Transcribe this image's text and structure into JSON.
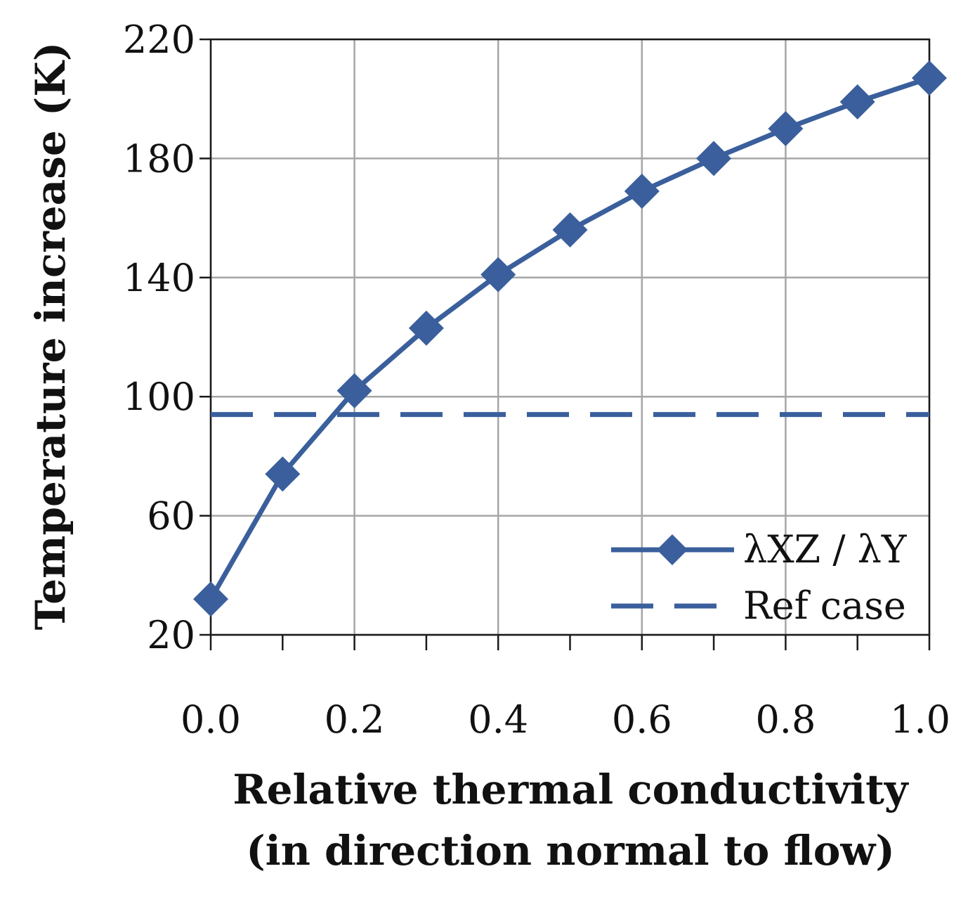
{
  "chart_data": {
    "type": "line",
    "title": "",
    "xlabel_lines": [
      "Relative thermal conductivity",
      "(in direction normal to flow)"
    ],
    "ylabel": "Temperature increase (K)",
    "xlim": [
      0.0,
      1.0
    ],
    "ylim": [
      20,
      220
    ],
    "x_ticks": [
      0.0,
      0.1,
      0.2,
      0.3,
      0.4,
      0.5,
      0.6,
      0.7,
      0.8,
      0.9,
      1.0
    ],
    "x_tick_labels": [
      {
        "value": 0.0,
        "label": "0.0"
      },
      {
        "value": 0.2,
        "label": "0.2"
      },
      {
        "value": 0.4,
        "label": "0.4"
      },
      {
        "value": 0.6,
        "label": "0.6"
      },
      {
        "value": 0.8,
        "label": "0.8"
      },
      {
        "value": 1.0,
        "label": "1.0"
      }
    ],
    "y_ticks": [
      20,
      60,
      100,
      140,
      180,
      220
    ],
    "y_tick_labels": [
      "20",
      "60",
      "100",
      "140",
      "180",
      "220"
    ],
    "grid": true,
    "legend_position": "bottom-right",
    "series": [
      {
        "name": "λXZ / λY",
        "style": "solid",
        "marker": "diamond",
        "color": "#3a5f9c",
        "x": [
          0.0,
          0.1,
          0.2,
          0.3,
          0.4,
          0.5,
          0.6,
          0.7,
          0.8,
          0.9,
          1.0
        ],
        "values": [
          32,
          74,
          102,
          123,
          141,
          156,
          169,
          180,
          190,
          199,
          207
        ]
      },
      {
        "name": "Ref case",
        "style": "dashed",
        "marker": "none",
        "color": "#3a5f9c",
        "x": [
          0.0,
          1.0
        ],
        "values": [
          94,
          94
        ]
      }
    ]
  }
}
